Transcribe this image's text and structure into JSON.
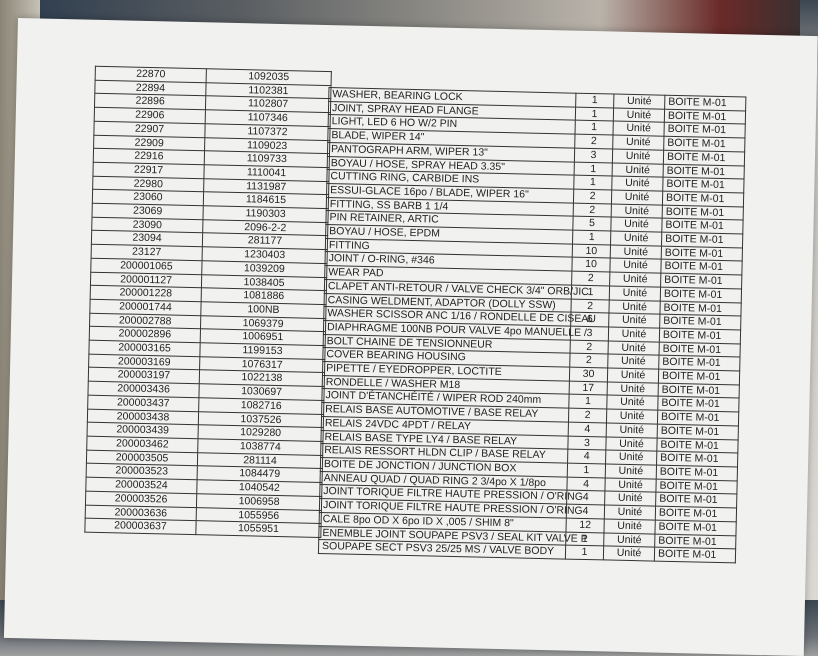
{
  "left_columns": [
    [
      "22870",
      "1092035"
    ],
    [
      "22894",
      "1102381"
    ],
    [
      "22896",
      "1102807"
    ],
    [
      "22906",
      "1107346"
    ],
    [
      "22907",
      "1107372"
    ],
    [
      "22909",
      "1109023"
    ],
    [
      "22916",
      "1109733"
    ],
    [
      "22917",
      "1110041"
    ],
    [
      "22980",
      "1131987"
    ],
    [
      "23060",
      "1184615"
    ],
    [
      "23069",
      "1190303"
    ],
    [
      "23090",
      "2096-2-2"
    ],
    [
      "23094",
      "281177"
    ],
    [
      "23127",
      "1230403"
    ],
    [
      "200001065",
      "1039209"
    ],
    [
      "200001127",
      "1038405"
    ],
    [
      "200001228",
      "1081886"
    ],
    [
      "200001744",
      "100NB"
    ],
    [
      "200002788",
      "1069379"
    ],
    [
      "200002896",
      "1006951"
    ],
    [
      "200003165",
      "1199153"
    ],
    [
      "200003169",
      "1076317"
    ],
    [
      "200003197",
      "1022138"
    ],
    [
      "200003436",
      "1030697"
    ],
    [
      "200003437",
      "1082716"
    ],
    [
      "200003438",
      "1037526"
    ],
    [
      "200003439",
      "1029280"
    ],
    [
      "200003462",
      "1038774"
    ],
    [
      "200003505",
      "281114"
    ],
    [
      "200003523",
      "1084479"
    ],
    [
      "200003524",
      "1040542"
    ],
    [
      "200003526",
      "1006958"
    ],
    [
      "200003636",
      "1055956"
    ],
    [
      "200003637",
      "1055951"
    ]
  ],
  "right_columns": [
    [
      "WASHER, BEARING LOCK",
      "1",
      "Unité",
      "BOITE M-01"
    ],
    [
      "JOINT, SPRAY HEAD FLANGE",
      "1",
      "Unité",
      "BOITE M-01"
    ],
    [
      "LIGHT, LED 6 HO W/2 PIN",
      "1",
      "Unité",
      "BOITE M-01"
    ],
    [
      "BLADE, WIPER 14\"",
      "2",
      "Unité",
      "BOITE M-01"
    ],
    [
      "PANTOGRAPH ARM, WIPER 13\"",
      "3",
      "Unité",
      "BOITE M-01"
    ],
    [
      "BOYAU  /  HOSE, SPRAY HEAD 3.35\"",
      "1",
      "Unité",
      "BOITE M-01"
    ],
    [
      "CUTTING RING, CARBIDE INS",
      "1",
      "Unité",
      "BOITE M-01"
    ],
    [
      "ESSUI-GLACE 16po  /  BLADE, WIPER 16\"",
      "2",
      "Unité",
      "BOITE M-01"
    ],
    [
      "FITTING, SS BARB 1 1/4",
      "2",
      "Unité",
      "BOITE M-01"
    ],
    [
      "PIN RETAINER, ARTIC",
      "5",
      "Unité",
      "BOITE M-01"
    ],
    [
      "BOYAU  / HOSE, EPDM",
      "1",
      "Unité",
      "BOITE M-01"
    ],
    [
      "FITTING",
      "10",
      "Unité",
      "BOITE M-01"
    ],
    [
      "JOINT  /  O-RING, #346",
      "10",
      "Unité",
      "BOITE M-01"
    ],
    [
      "WEAR PAD",
      "2",
      "Unité",
      "BOITE M-01"
    ],
    [
      "CLAPET ANTI-RETOUR / VALVE CHECK 3/4\" ORB/JIC",
      "1",
      "Unité",
      "BOITE M-01"
    ],
    [
      "CASING WELDMENT, ADAPTOR (DOLLY SSW)",
      "2",
      "Unité",
      "BOITE M-01"
    ],
    [
      "WASHER SCISSOR ANC 1/16 / RONDELLE DE CISEAU",
      "6",
      "Unité",
      "BOITE M-01"
    ],
    [
      "DIAPHRAGME 100NB POUR VALVE 4po MANUELLE /",
      "3",
      "Unité",
      "BOITE M-01"
    ],
    [
      "BOLT CHAINE DE TENSIONNEUR",
      "2",
      "Unité",
      "BOITE M-01"
    ],
    [
      "COVER BEARING HOUSING",
      "2",
      "Unité",
      "BOITE M-01"
    ],
    [
      "PIPETTE / EYEDROPPER, LOCTITE",
      "30",
      "Unité",
      "BOITE M-01"
    ],
    [
      "RONDELLE  /   WASHER M18",
      "17",
      "Unité",
      "BOITE M-01"
    ],
    [
      "JOINT D'ÉTANCHÉITÉ / WIPER ROD 240mm",
      "1",
      "Unité",
      "BOITE M-01"
    ],
    [
      "RELAIS BASE AUTOMOTIVE / BASE RELAY",
      "2",
      "Unité",
      "BOITE M-01"
    ],
    [
      "RELAIS 24VDC 4PDT /  RELAY",
      "4",
      "Unité",
      "BOITE M-01"
    ],
    [
      "RELAIS BASE TYPE LY4 /  BASE RELAY",
      "3",
      "Unité",
      "BOITE M-01"
    ],
    [
      "RELAIS RESSORT HLDN CLIP /  BASE RELAY",
      "4",
      "Unité",
      "BOITE M-01"
    ],
    [
      "BOITE DE JONCTION / JUNCTION BOX",
      "1",
      "Unité",
      "BOITE M-01"
    ],
    [
      "ANNEAU QUAD / QUAD RING 2 3/4po  X 1/8po",
      "4",
      "Unité",
      "BOITE M-01"
    ],
    [
      "JOINT TORIQUE FILTRE HAUTE PRESSION / O'RING",
      "4",
      "Unité",
      "BOITE M-01"
    ],
    [
      "JOINT TORIQUE FILTRE HAUTE PRESSION / O'RING",
      "4",
      "Unité",
      "BOITE M-01"
    ],
    [
      "CALE 8po OD X 6po ID X ,005  /  SHIM 8\"",
      "12",
      "Unité",
      "BOITE M-01"
    ],
    [
      "ENEMBLE JOINT SOUPAPE PSV3  /  SEAL KIT VALVE P",
      "1",
      "Unité",
      "BOITE M-01"
    ],
    [
      "SOUPAPE SECT PSV3 25/25 MS  /  VALVE BODY",
      "1",
      "Unité",
      "BOITE M-01"
    ]
  ]
}
